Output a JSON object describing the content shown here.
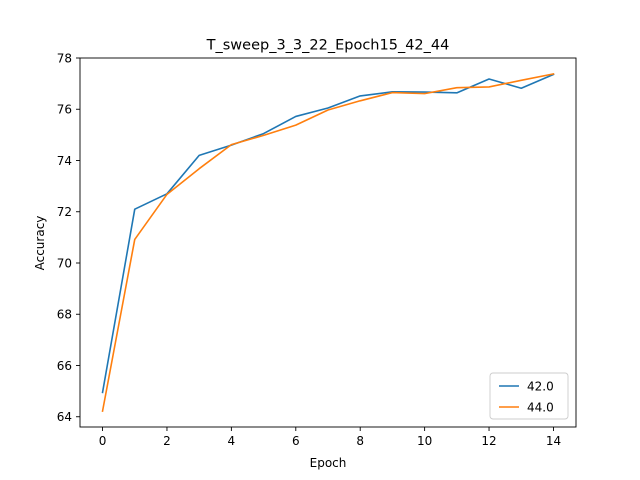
{
  "chart_data": {
    "type": "line",
    "title": "T_sweep_3_3_22_Epoch15_42_44",
    "xlabel": "Epoch",
    "ylabel": "Accuracy",
    "xlim": [
      -0.7,
      14.7
    ],
    "ylim": [
      63.6,
      78.0
    ],
    "xticks": [
      0,
      2,
      4,
      6,
      8,
      10,
      12,
      14
    ],
    "yticks": [
      64,
      66,
      68,
      70,
      72,
      74,
      76,
      78
    ],
    "grid": false,
    "legend_position": "lower-right",
    "x": [
      0,
      1,
      2,
      3,
      4,
      5,
      6,
      7,
      8,
      9,
      10,
      11,
      12,
      13,
      14
    ],
    "series": [
      {
        "name": "42.0",
        "color": "#1f77b4",
        "values": [
          64.95,
          72.1,
          72.7,
          74.2,
          74.6,
          75.05,
          75.72,
          76.05,
          76.52,
          76.68,
          76.67,
          76.64,
          77.18,
          76.82,
          77.36
        ]
      },
      {
        "name": "44.0",
        "color": "#ff7f0e",
        "values": [
          64.22,
          70.92,
          72.68,
          73.68,
          74.62,
          74.98,
          75.38,
          75.97,
          76.33,
          76.65,
          76.61,
          76.84,
          76.87,
          77.13,
          77.38
        ]
      }
    ]
  }
}
